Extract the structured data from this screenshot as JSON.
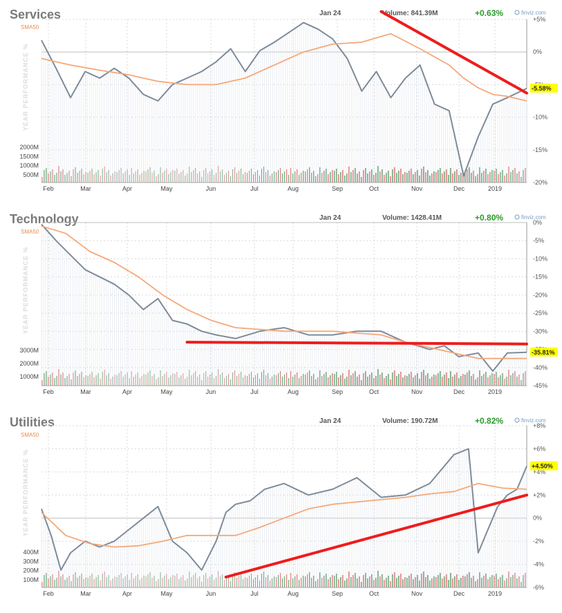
{
  "months": [
    "Feb",
    "Mar",
    "Apr",
    "May",
    "Jun",
    "Jul",
    "Aug",
    "Sep",
    "Oct",
    "Nov",
    "Dec",
    "2019"
  ],
  "colors": {
    "price": "#7d8b99",
    "sma": "#f5a878",
    "trend": "#ee1c1c",
    "up_bar": "#5b9a6a",
    "down_bar": "#e06a6a",
    "grid": "#d8d8d8",
    "label_bg": "#ffff00"
  },
  "brand": "finviz.com",
  "sma_label": "SMA50",
  "y_axis_label": "YEAR PERFORMANCE %",
  "chart_data": [
    {
      "type": "line",
      "title": "Services",
      "date": "Jan 24",
      "volume": "Volume: 841.39M",
      "change": "+0.63%",
      "last_label": "-5.58%",
      "last_value": -5.58,
      "ylim": [
        -20,
        5
      ],
      "yticks": [
        5,
        0,
        -5,
        -10,
        -15,
        -20
      ],
      "ytick_labels": [
        "+5%",
        "0%",
        "-5%",
        "-10%",
        "-15%",
        "-20%"
      ],
      "volume_ticks": [
        "2000M",
        "1500M",
        "1000M",
        "500M"
      ],
      "series": [
        {
          "name": "price",
          "x": [
            0,
            0.03,
            0.06,
            0.09,
            0.12,
            0.15,
            0.18,
            0.21,
            0.24,
            0.27,
            0.3,
            0.33,
            0.36,
            0.39,
            0.42,
            0.45,
            0.48,
            0.51,
            0.54,
            0.57,
            0.6,
            0.63,
            0.66,
            0.69,
            0.72,
            0.75,
            0.78,
            0.81,
            0.84,
            0.87,
            0.9,
            0.93,
            0.96,
            1.0
          ],
          "values": [
            1.8,
            -2.5,
            -7,
            -3,
            -4,
            -2.5,
            -4,
            -6.5,
            -7.5,
            -5,
            -4,
            -3,
            -1.5,
            0.5,
            -3,
            0.2,
            1.5,
            3,
            4.5,
            3.5,
            2,
            -1,
            -6,
            -3,
            -7,
            -4,
            -2,
            -8,
            -9,
            -19,
            -13,
            -8,
            -7,
            -5.58
          ]
        },
        {
          "name": "SMA50",
          "x": [
            0,
            0.06,
            0.12,
            0.18,
            0.24,
            0.3,
            0.36,
            0.42,
            0.48,
            0.54,
            0.6,
            0.66,
            0.72,
            0.78,
            0.84,
            0.87,
            0.9,
            0.93,
            0.96,
            1.0
          ],
          "values": [
            -1,
            -2,
            -2.8,
            -3.5,
            -4.5,
            -5,
            -5,
            -4,
            -2,
            0,
            1.2,
            1.5,
            2.8,
            0.5,
            -2,
            -4,
            -5.5,
            -6.5,
            -6.8,
            -7.5
          ]
        }
      ],
      "trendline": {
        "x": [
          0.7,
          1.0
        ],
        "values": [
          6.2,
          -6.3
        ]
      }
    },
    {
      "type": "line",
      "title": "Technology",
      "date": "Jan 24",
      "volume": "Volume: 1428.41M",
      "change": "+0.80%",
      "last_label": "-35.81%",
      "last_value": -35.81,
      "ylim": [
        -45,
        0
      ],
      "yticks": [
        0,
        -5,
        -10,
        -15,
        -20,
        -25,
        -30,
        -35,
        -40,
        -45
      ],
      "ytick_labels": [
        "0%",
        "-5%",
        "-10%",
        "-15%",
        "-20%",
        "-25%",
        "-30%",
        "-35%",
        "-40%",
        "-45%"
      ],
      "volume_ticks": [
        "3000M",
        "2000M",
        "1000M"
      ],
      "series": [
        {
          "name": "price",
          "x": [
            0,
            0.03,
            0.06,
            0.09,
            0.12,
            0.15,
            0.18,
            0.21,
            0.24,
            0.27,
            0.3,
            0.33,
            0.36,
            0.4,
            0.45,
            0.5,
            0.55,
            0.6,
            0.65,
            0.7,
            0.75,
            0.8,
            0.83,
            0.86,
            0.9,
            0.93,
            0.96,
            1.0
          ],
          "values": [
            -0.5,
            -5,
            -9,
            -13,
            -15,
            -17,
            -20,
            -24,
            -21,
            -27,
            -28,
            -30,
            -31,
            -32,
            -30,
            -29,
            -31,
            -31,
            -30,
            -30,
            -33,
            -35,
            -34,
            -37,
            -36,
            -41,
            -36,
            -35.81
          ]
        },
        {
          "name": "SMA50",
          "x": [
            0,
            0.05,
            0.1,
            0.15,
            0.2,
            0.25,
            0.3,
            0.35,
            0.4,
            0.45,
            0.5,
            0.55,
            0.6,
            0.65,
            0.7,
            0.75,
            0.8,
            0.85,
            0.9,
            0.95,
            1.0
          ],
          "values": [
            -1,
            -3,
            -8,
            -11,
            -15,
            -20,
            -24,
            -27,
            -29,
            -29.5,
            -30,
            -30,
            -30,
            -30.5,
            -31,
            -33,
            -34.5,
            -36,
            -37.5,
            -37.5,
            -37.5
          ]
        }
      ],
      "trendline": {
        "x": [
          0.3,
          1.0
        ],
        "values": [
          -33,
          -33.5
        ]
      }
    },
    {
      "type": "line",
      "title": "Utilities",
      "date": "Jan 24",
      "volume": "Volume: 190.72M",
      "change": "+0.82%",
      "last_label": "+4.50%",
      "last_value": 4.5,
      "ylim": [
        -6,
        8
      ],
      "yticks": [
        8,
        6,
        4,
        2,
        0,
        -2,
        -4,
        -6
      ],
      "ytick_labels": [
        "+8%",
        "+6%",
        "+4%",
        "+2%",
        "0%",
        "-2%",
        "-4%",
        "-6%"
      ],
      "volume_ticks": [
        "400M",
        "300M",
        "200M",
        "100M"
      ],
      "series": [
        {
          "name": "price",
          "x": [
            0,
            0.02,
            0.04,
            0.06,
            0.09,
            0.12,
            0.15,
            0.18,
            0.21,
            0.24,
            0.27,
            0.3,
            0.33,
            0.36,
            0.38,
            0.4,
            0.43,
            0.46,
            0.5,
            0.55,
            0.6,
            0.65,
            0.7,
            0.75,
            0.8,
            0.85,
            0.88,
            0.9,
            0.92,
            0.94,
            0.96,
            0.98,
            1.0
          ],
          "values": [
            0.8,
            -1.5,
            -4.5,
            -3,
            -2,
            -2.5,
            -2,
            -1,
            0,
            1,
            -2,
            -3,
            -4.5,
            -2,
            0.5,
            1.2,
            1.5,
            2.5,
            3,
            2,
            2.5,
            3.5,
            1.8,
            2,
            3,
            5.5,
            6,
            -3,
            -1,
            1,
            2,
            2.5,
            4.5
          ]
        },
        {
          "name": "SMA50",
          "x": [
            0,
            0.05,
            0.1,
            0.15,
            0.2,
            0.25,
            0.3,
            0.35,
            0.4,
            0.45,
            0.5,
            0.55,
            0.6,
            0.65,
            0.7,
            0.75,
            0.8,
            0.85,
            0.9,
            0.95,
            1.0
          ],
          "values": [
            0.5,
            -1.5,
            -2.2,
            -2.5,
            -2.4,
            -2,
            -1.5,
            -1.5,
            -1.5,
            -0.8,
            0,
            0.8,
            1.2,
            1.4,
            1.6,
            1.8,
            2.1,
            2.3,
            3,
            2.6,
            2.5
          ]
        }
      ],
      "trendline": {
        "x": [
          0.38,
          1.0
        ],
        "values": [
          -5.1,
          2.0
        ]
      }
    }
  ]
}
